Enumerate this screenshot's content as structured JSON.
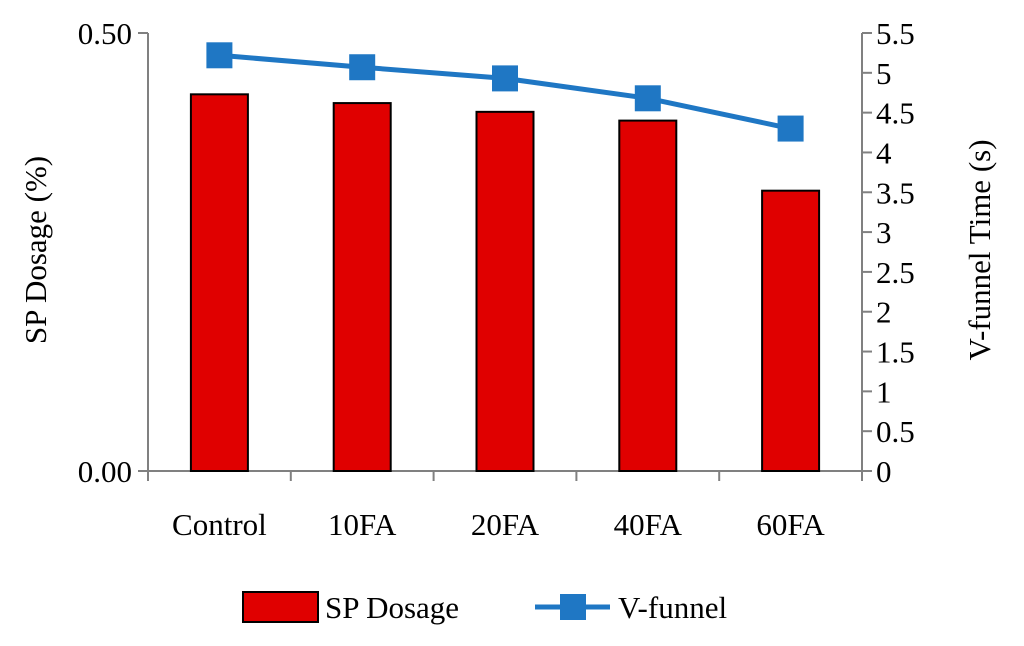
{
  "chart_data": {
    "type": "bar",
    "categories": [
      "Control",
      "10FA",
      "20FA",
      "40FA",
      "60FA"
    ],
    "series": [
      {
        "name": "SP Dosage",
        "type": "bar",
        "axis": "left",
        "values": [
          0.43,
          0.42,
          0.41,
          0.4,
          0.32
        ]
      },
      {
        "name": "V-funnel",
        "type": "line",
        "axis": "right",
        "values": [
          5.22,
          5.07,
          4.93,
          4.68,
          4.3
        ]
      }
    ],
    "ylabel": "SP Dosage (%)",
    "y2label": "V-funnel Time (s)",
    "ylim": [
      0,
      0.5
    ],
    "y2lim": [
      0,
      5.5
    ],
    "yticks": [
      "0.00",
      "0.50"
    ],
    "y2ticks": [
      "0",
      "0.5",
      "1",
      "1.5",
      "2",
      "2.5",
      "3",
      "3.5",
      "4",
      "4.5",
      "5",
      "5.5"
    ],
    "grid": false,
    "legend_position": "bottom",
    "colors": {
      "bar_fill": "#e00000",
      "bar_stroke": "#000000",
      "line": "#1f77c4",
      "axis": "#808080"
    }
  }
}
